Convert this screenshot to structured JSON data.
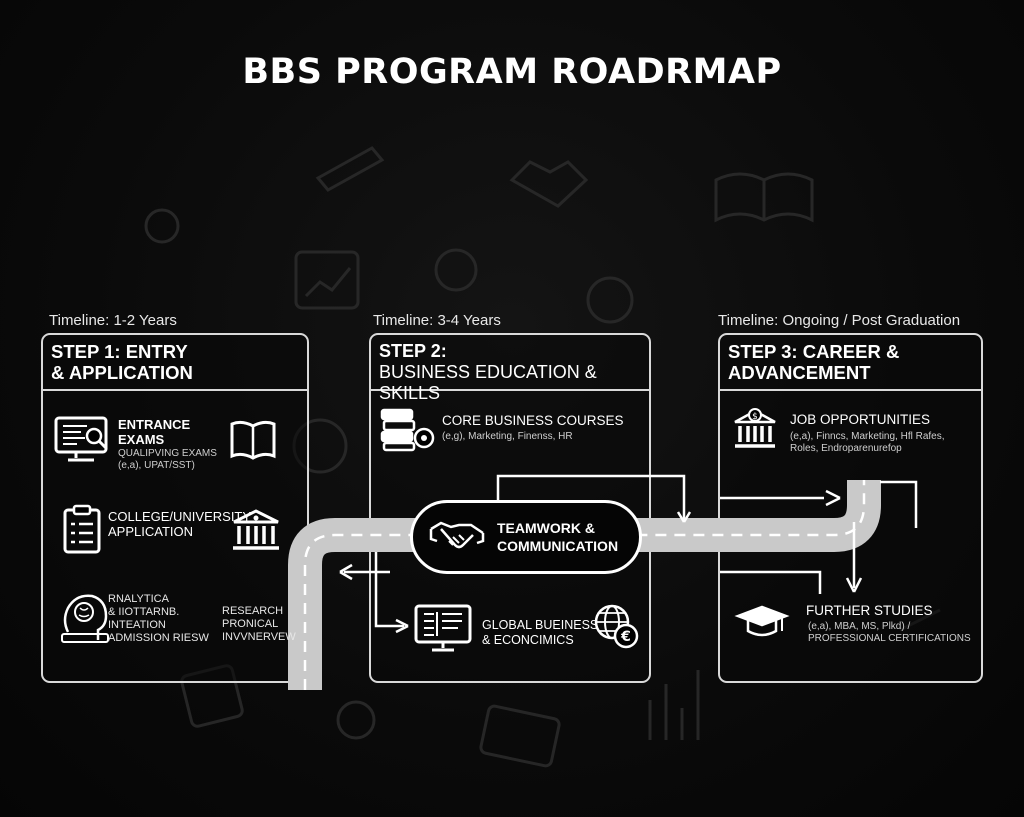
{
  "title": "BBS PROGRAM ROADRMAP",
  "steps": [
    {
      "timeline": "Timeline: 1-2 Years",
      "title_line1": "STEP 1: ENTRY",
      "title_line2": "& APPLICATION",
      "items": [
        {
          "title1": "ENTRANCE",
          "title2": "EXAMS",
          "sub1": "QUALIPVING EXAMS",
          "sub2": "(e,a), UPAT/SST)",
          "icon": "monitor-search-icon",
          "icon2": "open-book-icon"
        },
        {
          "title1": "COLLEGE/UNIVERSITY",
          "title2": "APPLICATION",
          "icon": "clipboard-checklist-icon",
          "icon2": "university-building-icon"
        },
        {
          "title1": "RNALYTICA",
          "title2": "& IIOTTARNB.",
          "title3": "INTEATION",
          "title4": "ADMISSION RIESW",
          "right1": "RESEARCH",
          "right2": "PRONICAL",
          "right3": "INVVNERVEW",
          "icon": "brain-head-icon"
        }
      ]
    },
    {
      "timeline": "Timeline: 3-4 Years",
      "title_line1": "STEP 2:",
      "title_line2": "BUSINESS EDUCATION & SKILLS",
      "items": [
        {
          "title1": "CORE BUSINESS COURSES",
          "sub1": "(e,g), Marketing, Finenss, HR",
          "icon": "books-gear-icon"
        },
        {
          "title1": "GLOBAL BUEINESS",
          "title2": "& ECONCIMICS",
          "icon": "computer-screen-icon",
          "icon2": "globe-euro-icon"
        }
      ],
      "bubble_line1": "TEAMWORK &",
      "bubble_line2": "COMMUNICATION",
      "bubble_icon": "handshake-icon"
    },
    {
      "timeline": "Timeline: Ongoing / Post Graduation",
      "title_line1": "STEP 3: CAREER &",
      "title_line2": "ADVANCEMENT",
      "items": [
        {
          "title1": "JOB OPPORTUNITIES",
          "sub1": "(e,a), Finncs, Marketing, Hfl Rafes,",
          "sub2": "Roles, Endroparenurefop",
          "icon": "bank-dollar-icon"
        },
        {
          "title1": "FURTHER STUDIES",
          "sub1": "(e,a), MBA, MS, Plkd) /",
          "sub2": "PROFESSIONAL CERTIFICATIONS",
          "icon": "graduation-cap-icon"
        }
      ]
    }
  ],
  "colors": {
    "background": "#0a0a0a",
    "line": "#d9d9d9",
    "road": "#c8c8c8",
    "text": "#ffffff"
  }
}
